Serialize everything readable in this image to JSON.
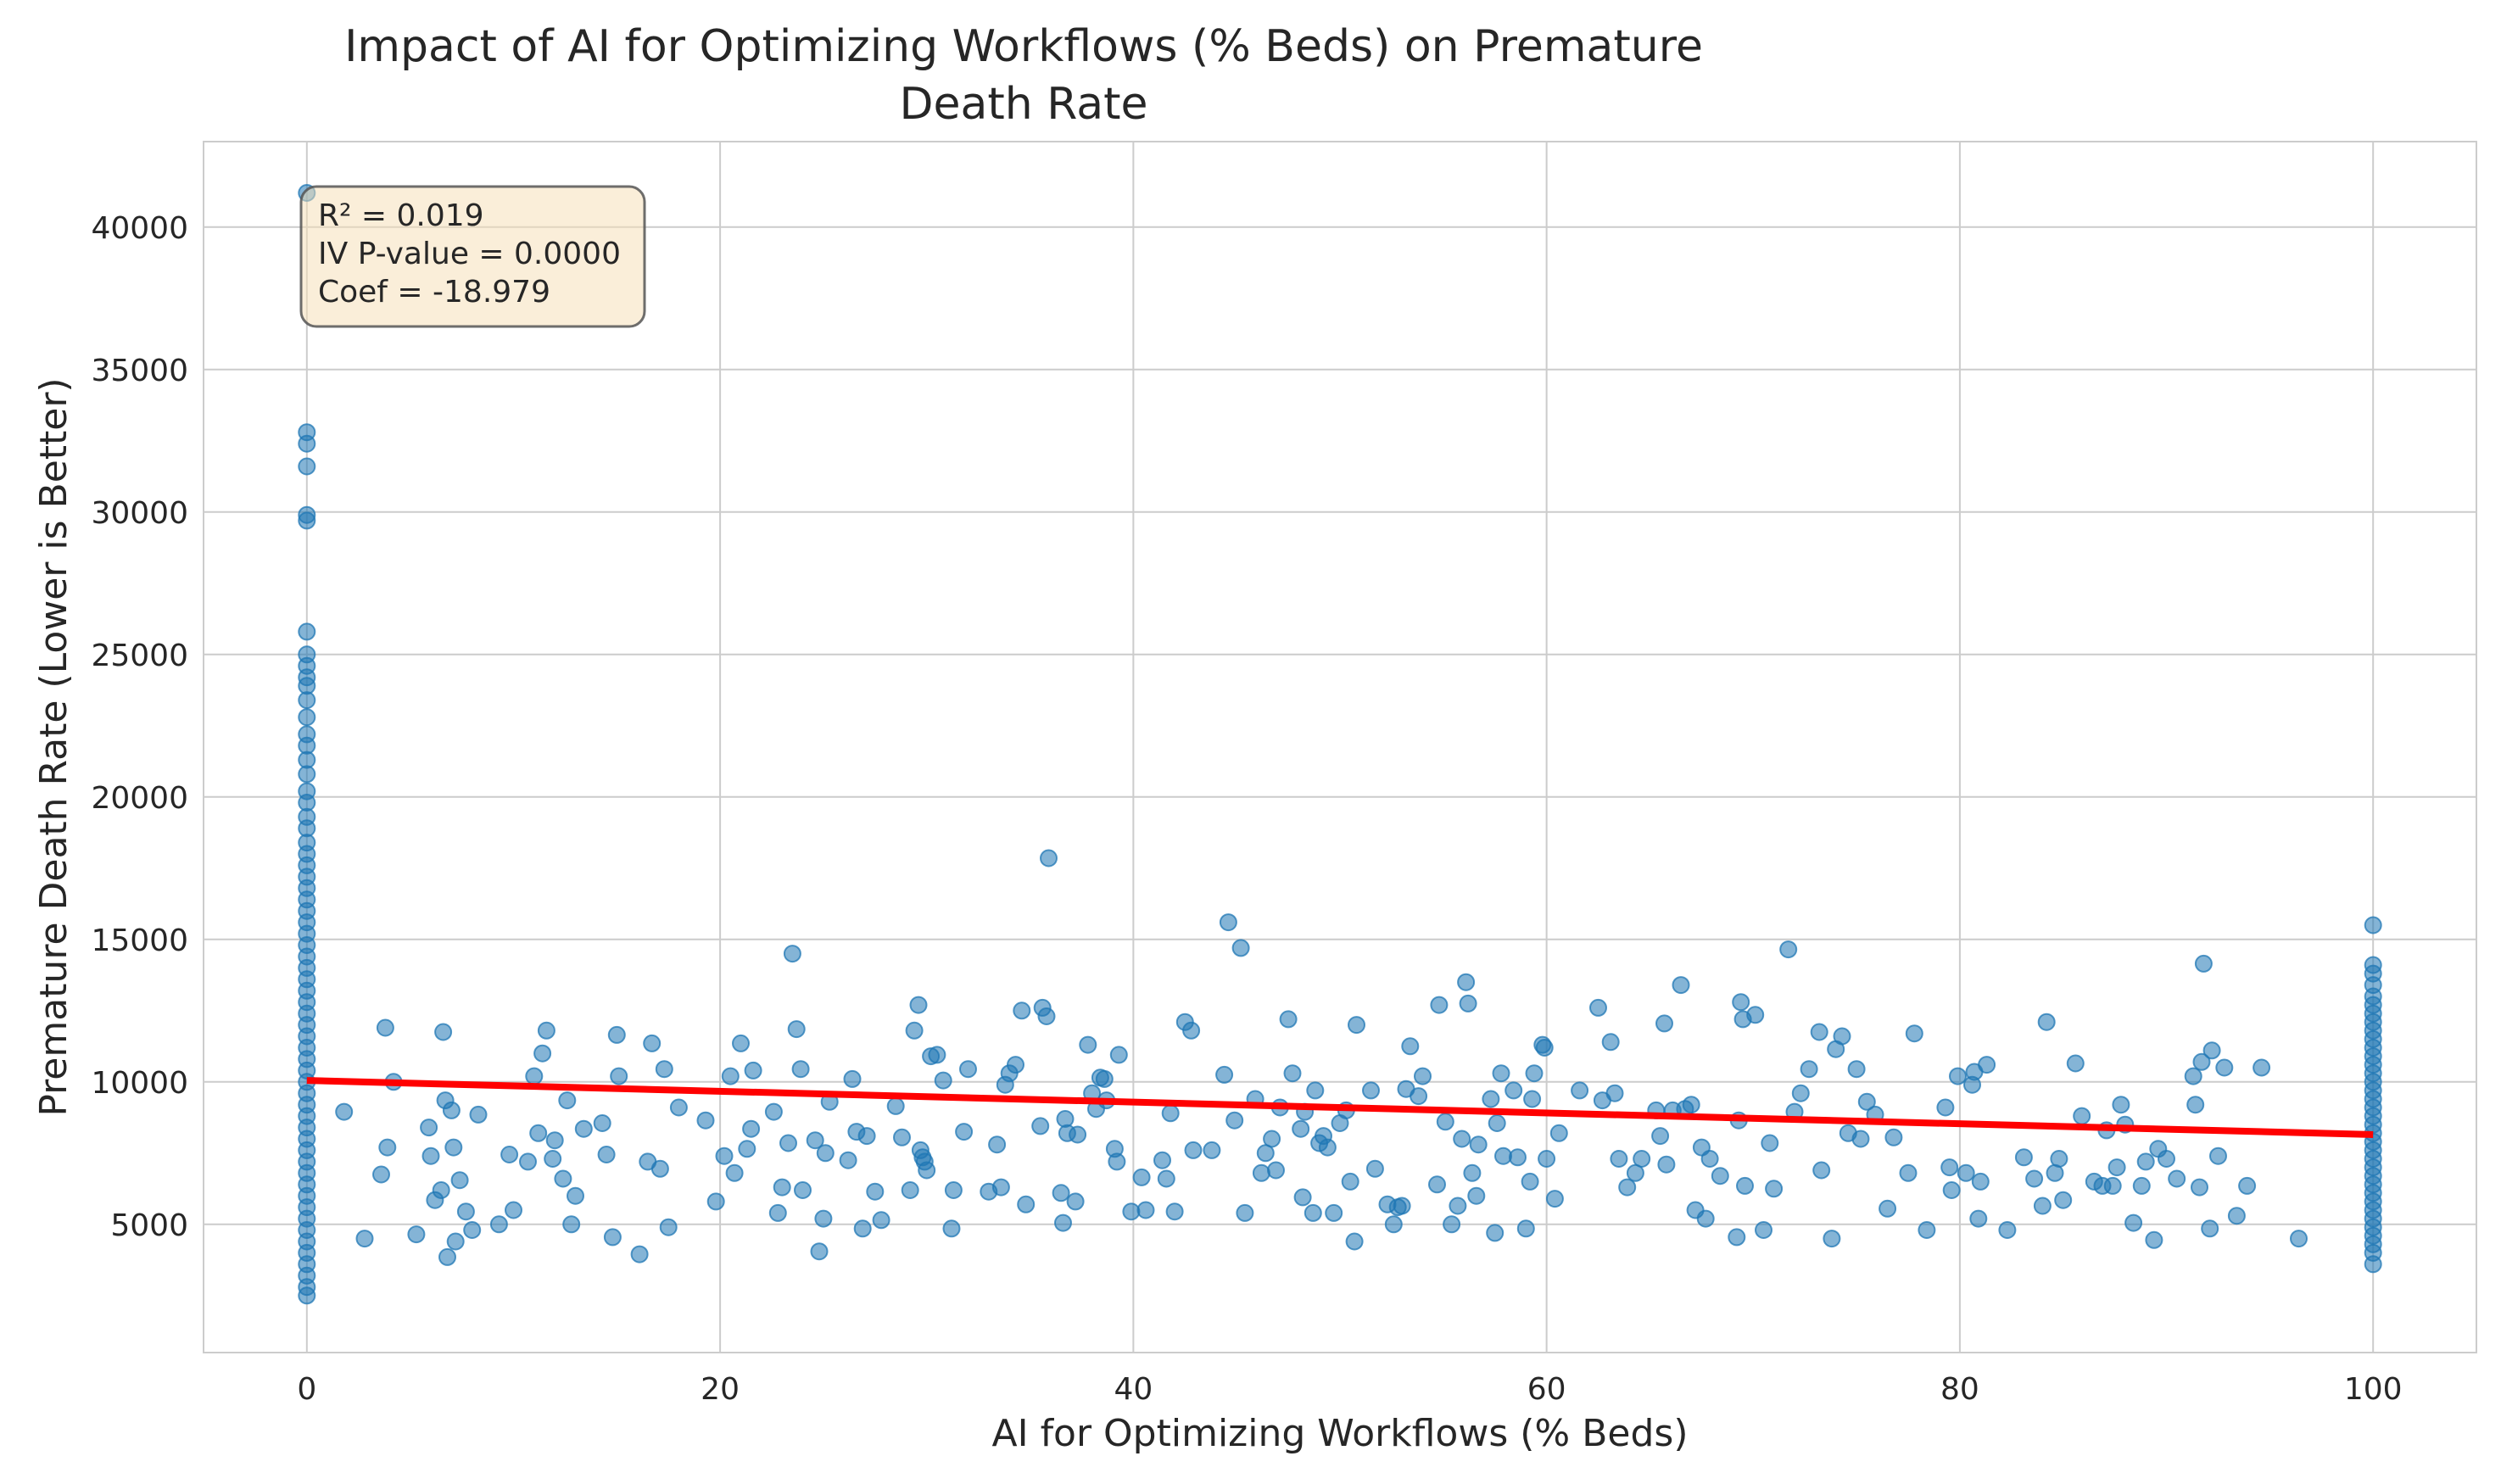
{
  "chart_data": {
    "type": "scatter",
    "title_lines": [
      "Impact of AI for Optimizing Workflows (% Beds) on Premature",
      "Death Rate"
    ],
    "xlabel": "AI for Optimizing Workflows (% Beds)",
    "ylabel": "Premature Death Rate (Lower is Better)",
    "xlim": [
      -5,
      105
    ],
    "ylim": [
      500,
      43000
    ],
    "xticks": [
      0,
      20,
      40,
      60,
      80,
      100
    ],
    "yticks": [
      5000,
      10000,
      15000,
      20000,
      25000,
      30000,
      35000,
      40000
    ],
    "grid": true,
    "point_color": "#1f77b4",
    "line_color": "#ff0000",
    "stats": [
      "R² = 0.019",
      "IV P-value = 0.0000",
      "Coef = -18.979"
    ],
    "regression": {
      "x": [
        0,
        100
      ],
      "y": [
        10050,
        8150
      ]
    },
    "points": [
      [
        0,
        41200
      ],
      [
        0,
        32800
      ],
      [
        0,
        32400
      ],
      [
        0,
        31600
      ],
      [
        0,
        29900
      ],
      [
        0,
        29700
      ],
      [
        0,
        25800
      ],
      [
        0,
        25000
      ],
      [
        0,
        24600
      ],
      [
        0,
        24200
      ],
      [
        0,
        23900
      ],
      [
        0,
        23400
      ],
      [
        0,
        22800
      ],
      [
        0,
        22200
      ],
      [
        0,
        21800
      ],
      [
        0,
        21300
      ],
      [
        0,
        20800
      ],
      [
        0,
        20200
      ],
      [
        0,
        19800
      ],
      [
        0,
        19300
      ],
      [
        0,
        18900
      ],
      [
        0,
        18400
      ],
      [
        0,
        18000
      ],
      [
        0,
        17600
      ],
      [
        0,
        17200
      ],
      [
        0,
        16800
      ],
      [
        0,
        16400
      ],
      [
        0,
        16000
      ],
      [
        0,
        15600
      ],
      [
        0,
        15200
      ],
      [
        0,
        14800
      ],
      [
        0,
        14400
      ],
      [
        0,
        14000
      ],
      [
        0,
        13600
      ],
      [
        0,
        13200
      ],
      [
        0,
        12800
      ],
      [
        0,
        12400
      ],
      [
        0,
        12000
      ],
      [
        0,
        11600
      ],
      [
        0,
        11200
      ],
      [
        0,
        10800
      ],
      [
        0,
        10400
      ],
      [
        0,
        10000
      ],
      [
        0,
        9600
      ],
      [
        0,
        9200
      ],
      [
        0,
        8800
      ],
      [
        0,
        8400
      ],
      [
        0,
        8000
      ],
      [
        0,
        7600
      ],
      [
        0,
        7200
      ],
      [
        0,
        6800
      ],
      [
        0,
        6400
      ],
      [
        0,
        6000
      ],
      [
        0,
        5600
      ],
      [
        0,
        5200
      ],
      [
        0,
        4800
      ],
      [
        0,
        4400
      ],
      [
        0,
        4000
      ],
      [
        0,
        3600
      ],
      [
        0,
        3200
      ],
      [
        0,
        2800
      ],
      [
        0,
        2500
      ],
      [
        100,
        15500
      ],
      [
        100,
        14100
      ],
      [
        100,
        13800
      ],
      [
        100,
        13400
      ],
      [
        100,
        13000
      ],
      [
        100,
        12700
      ],
      [
        100,
        12400
      ],
      [
        100,
        12100
      ],
      [
        100,
        11800
      ],
      [
        100,
        11500
      ],
      [
        100,
        11200
      ],
      [
        100,
        10900
      ],
      [
        100,
        10600
      ],
      [
        100,
        10300
      ],
      [
        100,
        10000
      ],
      [
        100,
        9700
      ],
      [
        100,
        9400
      ],
      [
        100,
        9100
      ],
      [
        100,
        8800
      ],
      [
        100,
        8500
      ],
      [
        100,
        8200
      ],
      [
        100,
        7900
      ],
      [
        100,
        7600
      ],
      [
        100,
        7300
      ],
      [
        100,
        7000
      ],
      [
        100,
        6700
      ],
      [
        100,
        6400
      ],
      [
        100,
        6100
      ],
      [
        100,
        5800
      ],
      [
        100,
        5500
      ],
      [
        100,
        5200
      ],
      [
        100,
        4900
      ],
      [
        100,
        4600
      ],
      [
        100,
        4300
      ],
      [
        100,
        4000
      ],
      [
        100,
        3600
      ],
      [
        1.8,
        8950
      ],
      [
        2.8,
        4500
      ],
      [
        3.6,
        6750
      ],
      [
        3.8,
        11900
      ],
      [
        3.9,
        7700
      ],
      [
        4.2,
        10000
      ],
      [
        5.3,
        4650
      ],
      [
        5.9,
        8400
      ],
      [
        6.0,
        7400
      ],
      [
        6.2,
        5850
      ],
      [
        6.5,
        6200
      ],
      [
        6.6,
        11750
      ],
      [
        6.7,
        9350
      ],
      [
        6.8,
        3850
      ],
      [
        7.0,
        9000
      ],
      [
        7.1,
        7700
      ],
      [
        7.2,
        4400
      ],
      [
        7.4,
        6550
      ],
      [
        7.7,
        5450
      ],
      [
        8.0,
        4800
      ],
      [
        8.3,
        8850
      ],
      [
        9.3,
        5000
      ],
      [
        9.8,
        7450
      ],
      [
        10.0,
        5500
      ],
      [
        10.7,
        7200
      ],
      [
        11.0,
        10200
      ],
      [
        11.2,
        8200
      ],
      [
        11.4,
        11000
      ],
      [
        11.6,
        11800
      ],
      [
        11.9,
        7300
      ],
      [
        12.0,
        7950
      ],
      [
        12.4,
        6600
      ],
      [
        12.6,
        9350
      ],
      [
        12.8,
        5000
      ],
      [
        13.0,
        6000
      ],
      [
        13.4,
        8350
      ],
      [
        14.3,
        8550
      ],
      [
        14.5,
        7450
      ],
      [
        14.8,
        4550
      ],
      [
        15.0,
        11650
      ],
      [
        15.1,
        10200
      ],
      [
        16.1,
        3950
      ],
      [
        16.5,
        7200
      ],
      [
        16.7,
        11350
      ],
      [
        17.1,
        6950
      ],
      [
        17.3,
        10450
      ],
      [
        17.5,
        4900
      ],
      [
        18.0,
        9100
      ],
      [
        19.3,
        8650
      ],
      [
        19.8,
        5800
      ],
      [
        20.2,
        7400
      ],
      [
        20.5,
        10200
      ],
      [
        20.7,
        6800
      ],
      [
        21.0,
        11350
      ],
      [
        21.3,
        7650
      ],
      [
        21.5,
        8350
      ],
      [
        21.6,
        10400
      ],
      [
        22.6,
        8950
      ],
      [
        22.8,
        5400
      ],
      [
        23.0,
        6300
      ],
      [
        23.3,
        7850
      ],
      [
        23.5,
        14500
      ],
      [
        23.7,
        11850
      ],
      [
        23.9,
        10450
      ],
      [
        24.0,
        6200
      ],
      [
        24.6,
        7950
      ],
      [
        24.8,
        4050
      ],
      [
        25.0,
        5200
      ],
      [
        25.1,
        7500
      ],
      [
        25.3,
        9300
      ],
      [
        26.2,
        7250
      ],
      [
        26.4,
        10100
      ],
      [
        26.6,
        8250
      ],
      [
        26.9,
        4850
      ],
      [
        27.1,
        8100
      ],
      [
        27.5,
        6150
      ],
      [
        27.8,
        5150
      ],
      [
        28.5,
        9150
      ],
      [
        28.8,
        8050
      ],
      [
        29.2,
        6200
      ],
      [
        29.4,
        11800
      ],
      [
        29.6,
        12700
      ],
      [
        29.7,
        7600
      ],
      [
        29.8,
        7350
      ],
      [
        29.9,
        7200
      ],
      [
        30.0,
        6900
      ],
      [
        30.2,
        10900
      ],
      [
        30.5,
        10950
      ],
      [
        30.8,
        10050
      ],
      [
        31.2,
        4850
      ],
      [
        31.3,
        6200
      ],
      [
        31.8,
        8250
      ],
      [
        32.0,
        10450
      ],
      [
        33.0,
        6150
      ],
      [
        33.4,
        7800
      ],
      [
        33.6,
        6300
      ],
      [
        33.8,
        9900
      ],
      [
        34.0,
        10300
      ],
      [
        34.3,
        10600
      ],
      [
        34.6,
        12500
      ],
      [
        34.8,
        5700
      ],
      [
        35.5,
        8450
      ],
      [
        35.6,
        12600
      ],
      [
        35.8,
        12300
      ],
      [
        35.9,
        17850
      ],
      [
        36.5,
        6100
      ],
      [
        36.6,
        5050
      ],
      [
        36.7,
        8700
      ],
      [
        36.8,
        8200
      ],
      [
        37.2,
        5800
      ],
      [
        37.3,
        8150
      ],
      [
        37.8,
        11300
      ],
      [
        38.0,
        9600
      ],
      [
        38.2,
        9050
      ],
      [
        38.4,
        10150
      ],
      [
        38.6,
        10100
      ],
      [
        38.7,
        9350
      ],
      [
        39.1,
        7650
      ],
      [
        39.2,
        7200
      ],
      [
        39.3,
        10950
      ],
      [
        39.9,
        5450
      ],
      [
        40.4,
        6650
      ],
      [
        40.6,
        5500
      ],
      [
        41.4,
        7250
      ],
      [
        41.6,
        6600
      ],
      [
        41.8,
        8900
      ],
      [
        42.0,
        5450
      ],
      [
        42.5,
        12100
      ],
      [
        42.8,
        11800
      ],
      [
        42.9,
        7600
      ],
      [
        43.8,
        7600
      ],
      [
        44.4,
        10250
      ],
      [
        44.6,
        15600
      ],
      [
        44.9,
        8650
      ],
      [
        45.2,
        14700
      ],
      [
        45.4,
        5400
      ],
      [
        45.9,
        9400
      ],
      [
        46.2,
        6800
      ],
      [
        46.4,
        7500
      ],
      [
        46.7,
        8000
      ],
      [
        46.9,
        6900
      ],
      [
        47.1,
        9100
      ],
      [
        47.5,
        12200
      ],
      [
        47.7,
        10300
      ],
      [
        48.1,
        8350
      ],
      [
        48.2,
        5950
      ],
      [
        48.3,
        8950
      ],
      [
        48.7,
        5400
      ],
      [
        48.8,
        9700
      ],
      [
        49.0,
        7850
      ],
      [
        49.2,
        8100
      ],
      [
        49.4,
        7700
      ],
      [
        49.7,
        5400
      ],
      [
        50.0,
        8550
      ],
      [
        50.3,
        9000
      ],
      [
        50.5,
        6500
      ],
      [
        50.7,
        4400
      ],
      [
        50.8,
        12000
      ],
      [
        51.5,
        9700
      ],
      [
        51.7,
        6950
      ],
      [
        52.3,
        5700
      ],
      [
        52.6,
        5000
      ],
      [
        52.8,
        5600
      ],
      [
        53.0,
        5650
      ],
      [
        53.2,
        9750
      ],
      [
        53.4,
        11250
      ],
      [
        53.8,
        9500
      ],
      [
        54.0,
        10200
      ],
      [
        54.7,
        6400
      ],
      [
        54.8,
        12700
      ],
      [
        55.1,
        8600
      ],
      [
        55.4,
        5000
      ],
      [
        55.7,
        5650
      ],
      [
        55.9,
        8000
      ],
      [
        56.1,
        13500
      ],
      [
        56.2,
        12750
      ],
      [
        56.4,
        6800
      ],
      [
        56.6,
        6000
      ],
      [
        56.7,
        7800
      ],
      [
        57.3,
        9400
      ],
      [
        57.5,
        4700
      ],
      [
        57.6,
        8550
      ],
      [
        57.8,
        10300
      ],
      [
        57.9,
        7400
      ],
      [
        58.4,
        9700
      ],
      [
        58.6,
        7350
      ],
      [
        59.0,
        4850
      ],
      [
        59.2,
        6500
      ],
      [
        59.3,
        9400
      ],
      [
        59.4,
        10300
      ],
      [
        59.8,
        11300
      ],
      [
        59.9,
        11200
      ],
      [
        60.0,
        7300
      ],
      [
        60.4,
        5900
      ],
      [
        60.6,
        8200
      ],
      [
        61.6,
        9700
      ],
      [
        62.5,
        12600
      ],
      [
        62.7,
        9350
      ],
      [
        63.1,
        11400
      ],
      [
        63.3,
        9600
      ],
      [
        63.5,
        7300
      ],
      [
        63.9,
        6300
      ],
      [
        64.3,
        6800
      ],
      [
        64.6,
        7300
      ],
      [
        65.3,
        9000
      ],
      [
        65.5,
        8100
      ],
      [
        65.7,
        12050
      ],
      [
        65.8,
        7100
      ],
      [
        66.1,
        9000
      ],
      [
        66.5,
        13400
      ],
      [
        66.7,
        9050
      ],
      [
        67.0,
        9200
      ],
      [
        67.2,
        5500
      ],
      [
        67.5,
        7700
      ],
      [
        67.7,
        5200
      ],
      [
        67.9,
        7300
      ],
      [
        68.4,
        6700
      ],
      [
        69.2,
        4550
      ],
      [
        69.3,
        8650
      ],
      [
        69.4,
        12800
      ],
      [
        69.5,
        12200
      ],
      [
        69.6,
        6350
      ],
      [
        70.1,
        12350
      ],
      [
        70.5,
        4800
      ],
      [
        70.8,
        7850
      ],
      [
        71.0,
        6250
      ],
      [
        71.7,
        14650
      ],
      [
        72.0,
        8950
      ],
      [
        72.3,
        9600
      ],
      [
        72.7,
        10450
      ],
      [
        73.2,
        11750
      ],
      [
        73.3,
        6900
      ],
      [
        73.8,
        4500
      ],
      [
        74.0,
        11150
      ],
      [
        74.3,
        11600
      ],
      [
        74.6,
        8200
      ],
      [
        75.0,
        10450
      ],
      [
        75.2,
        8000
      ],
      [
        75.5,
        9300
      ],
      [
        75.9,
        8850
      ],
      [
        76.5,
        5550
      ],
      [
        76.8,
        8050
      ],
      [
        77.5,
        6800
      ],
      [
        77.8,
        11700
      ],
      [
        78.4,
        4800
      ],
      [
        79.3,
        9100
      ],
      [
        79.5,
        7000
      ],
      [
        79.6,
        6200
      ],
      [
        79.9,
        10200
      ],
      [
        80.3,
        6800
      ],
      [
        80.6,
        9900
      ],
      [
        80.7,
        10350
      ],
      [
        80.9,
        5200
      ],
      [
        81.0,
        6500
      ],
      [
        81.3,
        10600
      ],
      [
        82.3,
        4800
      ],
      [
        83.1,
        7350
      ],
      [
        83.6,
        6600
      ],
      [
        84.0,
        5650
      ],
      [
        84.2,
        12100
      ],
      [
        84.6,
        6800
      ],
      [
        84.8,
        7300
      ],
      [
        85.0,
        5850
      ],
      [
        85.6,
        10650
      ],
      [
        85.9,
        8800
      ],
      [
        86.5,
        6500
      ],
      [
        86.9,
        6350
      ],
      [
        87.1,
        8300
      ],
      [
        87.4,
        6350
      ],
      [
        87.6,
        7000
      ],
      [
        87.8,
        9200
      ],
      [
        88.0,
        8500
      ],
      [
        88.4,
        5050
      ],
      [
        88.8,
        6350
      ],
      [
        89.0,
        7200
      ],
      [
        89.4,
        4450
      ],
      [
        89.6,
        7650
      ],
      [
        90.0,
        7300
      ],
      [
        90.5,
        6600
      ],
      [
        91.3,
        10200
      ],
      [
        91.4,
        9200
      ],
      [
        91.6,
        6300
      ],
      [
        91.7,
        10700
      ],
      [
        91.8,
        14150
      ],
      [
        92.1,
        4850
      ],
      [
        92.2,
        11100
      ],
      [
        92.5,
        7400
      ],
      [
        92.8,
        10500
      ],
      [
        93.4,
        5300
      ],
      [
        93.9,
        6350
      ],
      [
        94.6,
        10500
      ],
      [
        96.4,
        4500
      ]
    ]
  }
}
